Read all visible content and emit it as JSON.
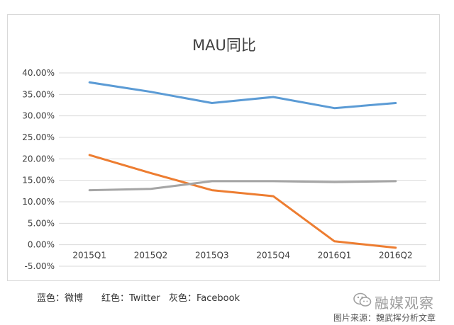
{
  "chart_data": {
    "type": "line",
    "title": "MAU同比",
    "categories": [
      "2015Q1",
      "2015Q2",
      "2015Q3",
      "2015Q4",
      "2016Q1",
      "2016Q2"
    ],
    "y_tick_labels": [
      "40.00%",
      "35.00%",
      "30.00%",
      "25.00%",
      "20.00%",
      "15.00%",
      "10.00%",
      "5.00%",
      "0.00%",
      "-5.00%"
    ],
    "ylim": [
      -0.05,
      0.4
    ],
    "y_step": 0.05,
    "grid": true,
    "series": [
      {
        "color": "#5b9bd5",
        "values": [
          0.378,
          0.356,
          0.33,
          0.344,
          0.318,
          0.33
        ]
      },
      {
        "color": "#ed7d31",
        "values": [
          0.209,
          0.167,
          0.127,
          0.113,
          0.008,
          -0.007
        ]
      },
      {
        "color": "#a5a5a5",
        "values": [
          0.127,
          0.13,
          0.148,
          0.148,
          0.146,
          0.148
        ]
      }
    ]
  },
  "legend_notes": [
    {
      "text": "蓝色：微博"
    },
    {
      "text": "红色：Twitter"
    },
    {
      "text": "灰色：Facebook"
    }
  ],
  "watermark": {
    "name": "融媒观察",
    "source": "图片来源：魏武挥分析文章",
    "icon": "wechat-icon"
  }
}
